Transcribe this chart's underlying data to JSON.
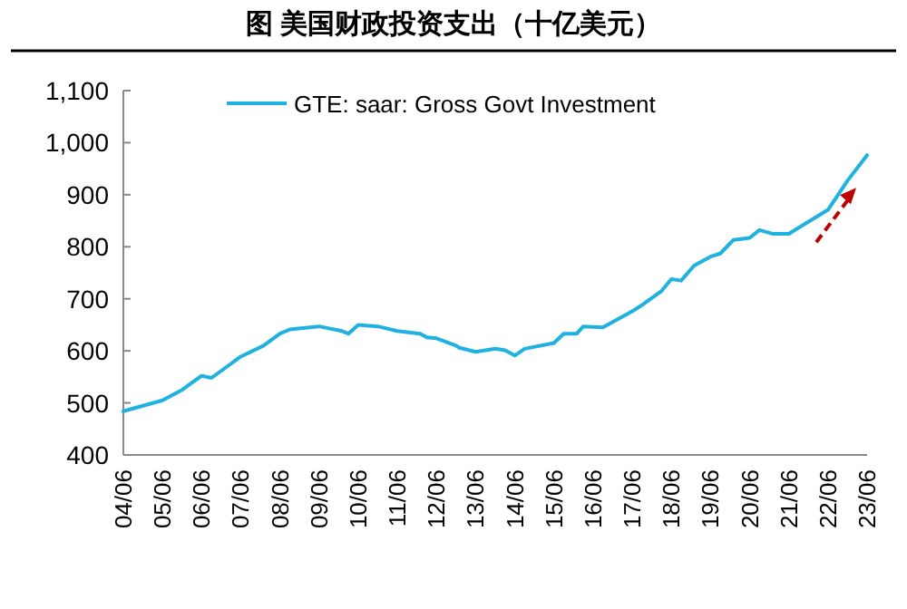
{
  "chart_data": {
    "type": "line",
    "title": "图  美国财政投资支出（十亿美元）",
    "x": [
      "2004-06",
      "2005-06",
      "2005-12",
      "2006-06",
      "2006-09",
      "2007-06",
      "2008-01",
      "2008-06",
      "2008-09",
      "2009-06",
      "2010-01",
      "2010-03",
      "2010-06",
      "2010-12",
      "2011-06",
      "2012-01",
      "2012-03",
      "2012-06",
      "2012-12",
      "2013-01",
      "2013-06",
      "2013-12",
      "2014-03",
      "2014-06",
      "2014-09",
      "2015-06",
      "2015-09",
      "2016-01",
      "2016-03",
      "2016-09",
      "2017-06",
      "2017-09",
      "2018-03",
      "2018-06",
      "2018-09",
      "2019-01",
      "2019-06",
      "2019-09",
      "2020-01",
      "2020-06",
      "2020-09",
      "2021-01",
      "2021-06",
      "2021-12",
      "2022-06",
      "2022-12",
      "2023-06"
    ],
    "series": [
      {
        "name": "GTE: saar: Gross Govt Investment",
        "color": "#1fb2e0",
        "values": [
          484,
          505,
          525,
          552,
          548,
          589,
          610,
          633,
          641,
          647,
          638,
          633,
          650,
          647,
          638,
          633,
          626,
          624,
          610,
          606,
          598,
          604,
          601,
          591,
          604,
          615,
          633,
          633,
          647,
          645,
          676,
          688,
          715,
          738,
          735,
          764,
          781,
          787,
          813,
          817,
          832,
          825,
          825,
          848,
          871,
          927,
          976
        ]
      }
    ],
    "xlim": [
      "2004-06",
      "2023-06"
    ],
    "xticks": [
      {
        "value": "2004-06",
        "label": "04/06"
      },
      {
        "value": "2005-06",
        "label": "05/06"
      },
      {
        "value": "2006-06",
        "label": "06/06"
      },
      {
        "value": "2007-06",
        "label": "07/06"
      },
      {
        "value": "2008-06",
        "label": "08/06"
      },
      {
        "value": "2009-06",
        "label": "09/06"
      },
      {
        "value": "2010-06",
        "label": "10/06"
      },
      {
        "value": "2011-06",
        "label": "11/06"
      },
      {
        "value": "2012-06",
        "label": "12/06"
      },
      {
        "value": "2013-06",
        "label": "13/06"
      },
      {
        "value": "2014-06",
        "label": "14/06"
      },
      {
        "value": "2015-06",
        "label": "15/06"
      },
      {
        "value": "2016-06",
        "label": "16/06"
      },
      {
        "value": "2017-06",
        "label": "17/06"
      },
      {
        "value": "2018-06",
        "label": "18/06"
      },
      {
        "value": "2019-06",
        "label": "19/06"
      },
      {
        "value": "2020-06",
        "label": "20/06"
      },
      {
        "value": "2021-06",
        "label": "21/06"
      },
      {
        "value": "2022-06",
        "label": "22/06"
      },
      {
        "value": "2023-06",
        "label": "23/06"
      }
    ],
    "ylim": [
      400,
      1100
    ],
    "yticks": [
      400,
      500,
      600,
      700,
      800,
      900,
      {
        "value": 1000,
        "label": "1,000"
      },
      {
        "value": 1100,
        "label": "1,100"
      }
    ],
    "grid": false,
    "legend": "top",
    "marker": "none",
    "line_style": "solid"
  }
}
